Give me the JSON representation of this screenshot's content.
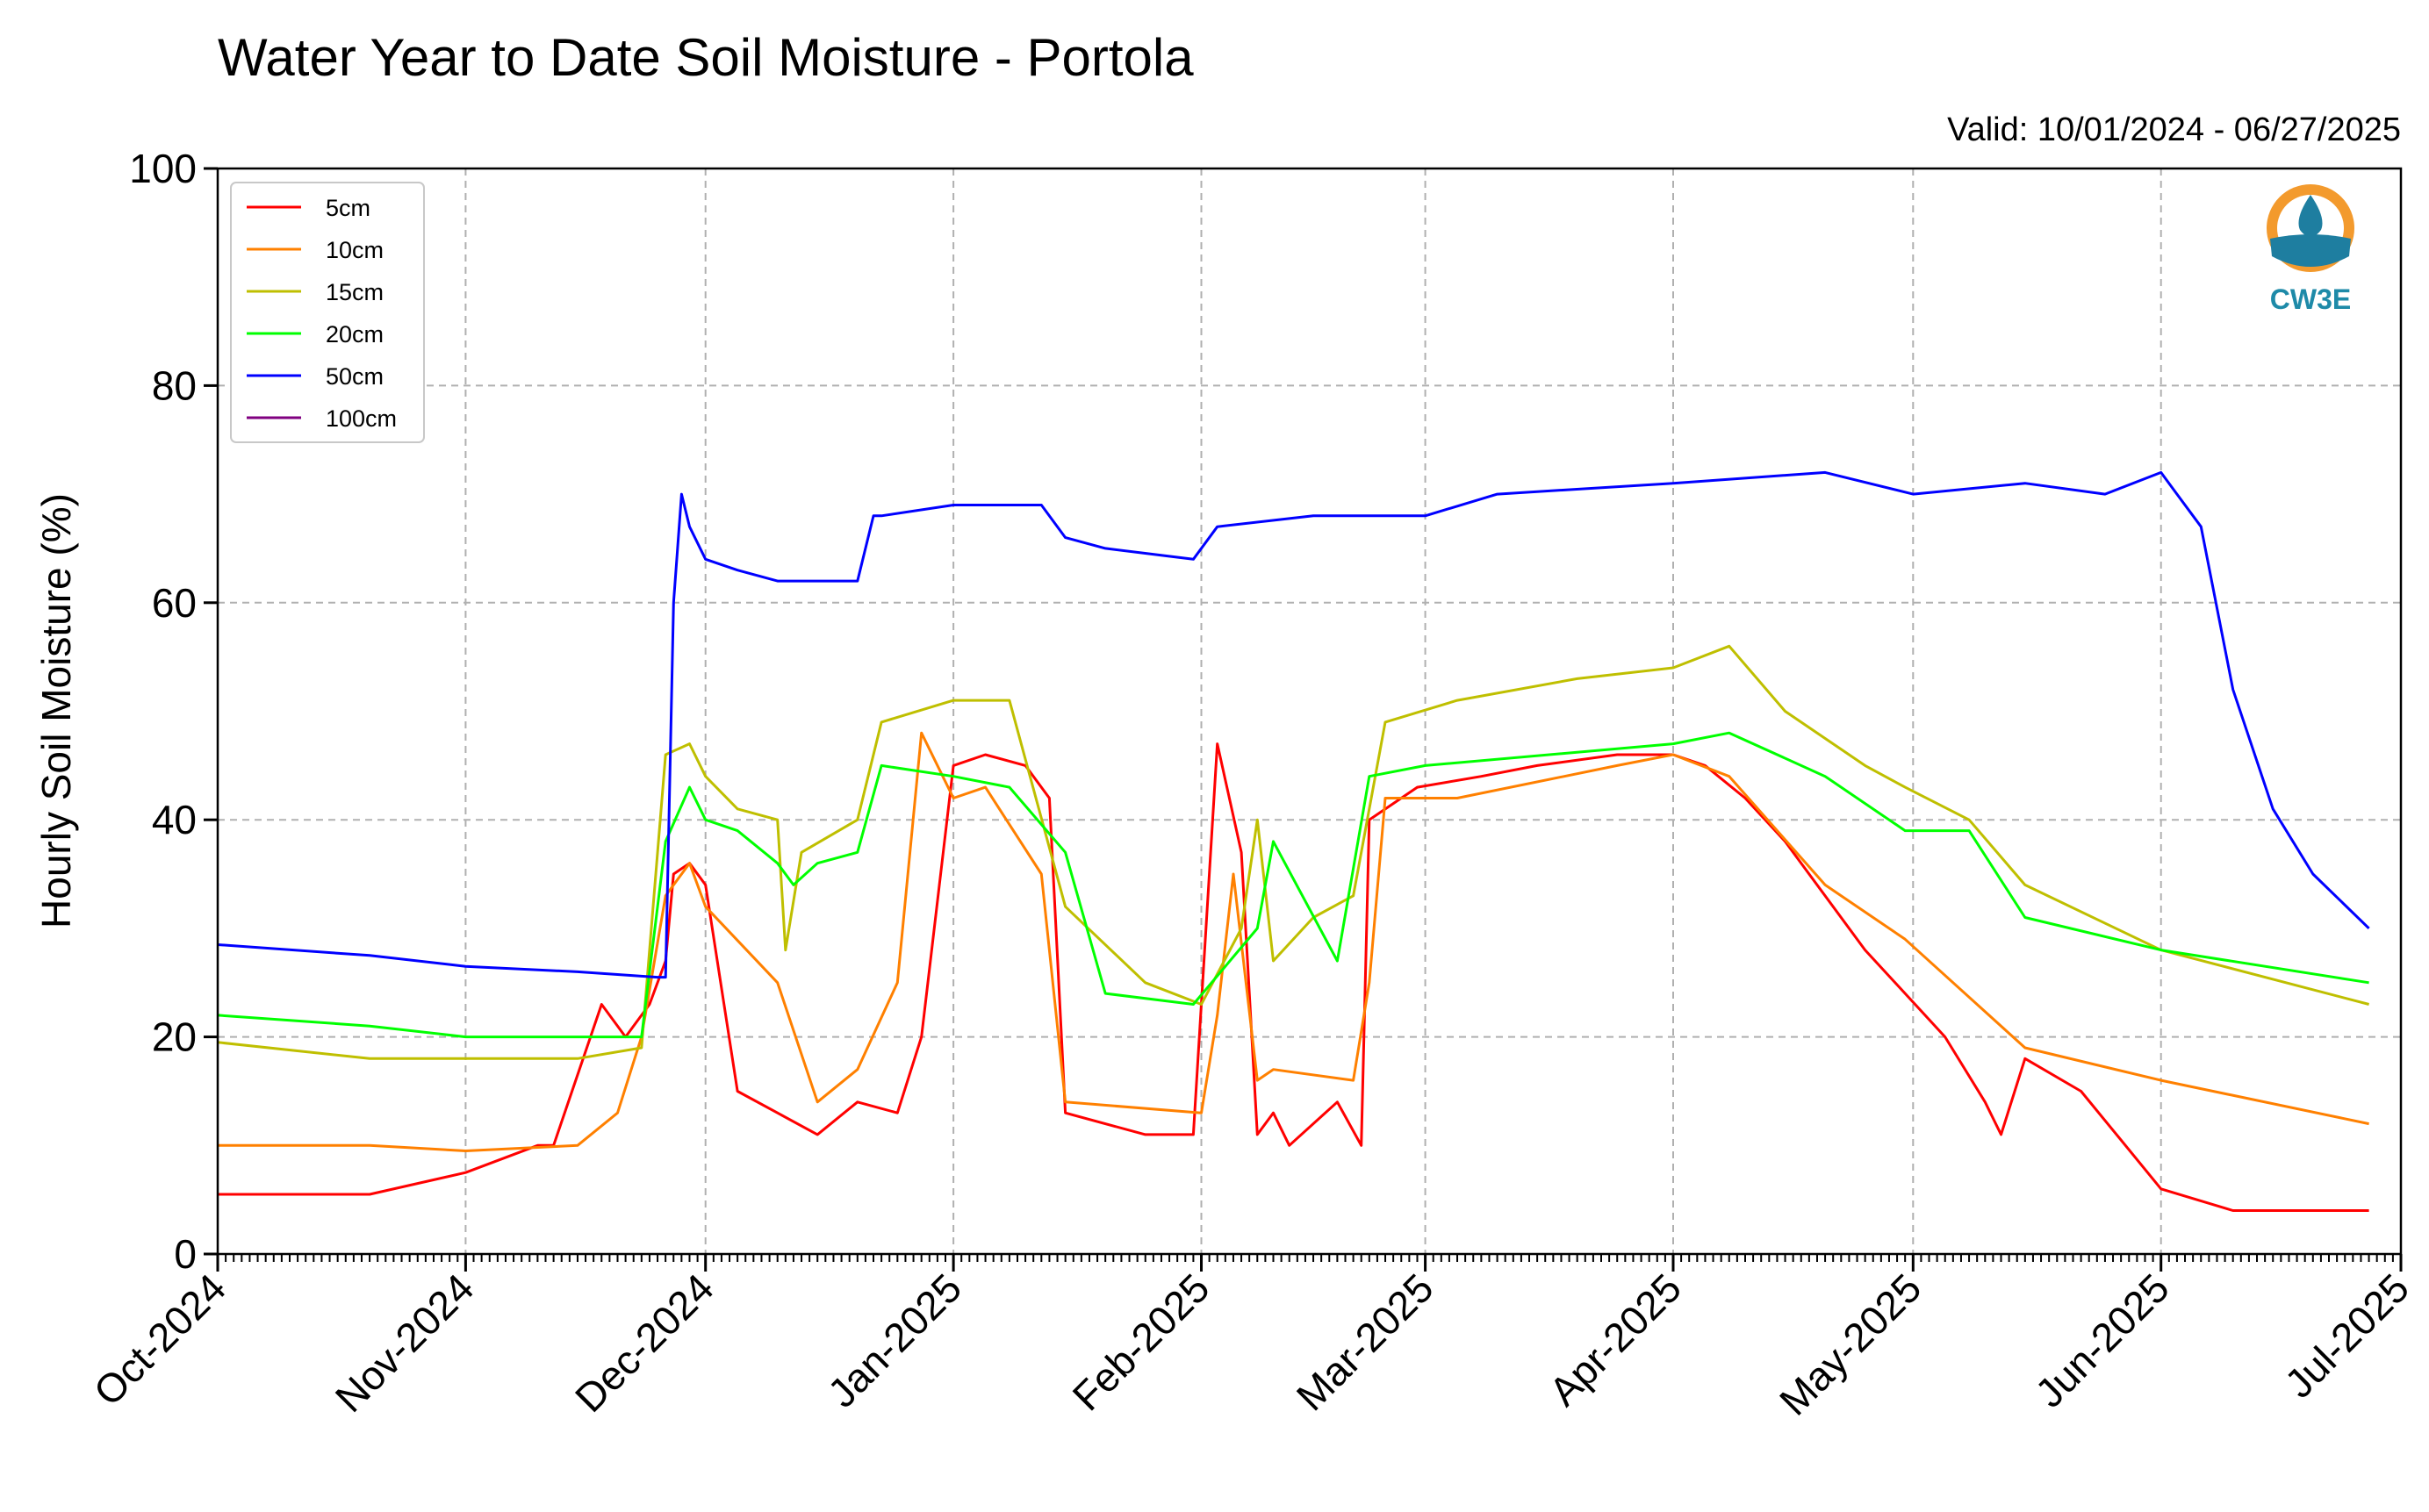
{
  "title": "Water Year to Date Soil Moisture - Portola",
  "valid_text": "Valid: 10/01/2024 - 06/27/2025",
  "logo_text": "CW3E",
  "chart_data": {
    "type": "line",
    "title": "Water Year to Date Soil Moisture - Portola",
    "xlabel": "",
    "ylabel": "Hourly Soil Moisture (%)",
    "xlim": [
      "2024-10-01",
      "2025-07-01"
    ],
    "ylim": [
      0,
      100
    ],
    "yticks": [
      0,
      20,
      40,
      60,
      80,
      100
    ],
    "x_tick_labels": [
      "Oct-2024",
      "Nov-2024",
      "Dec-2024",
      "Jan-2025",
      "Feb-2025",
      "Mar-2025",
      "Apr-2025",
      "May-2025",
      "Jun-2025",
      "Jul-2025"
    ],
    "grid": true,
    "legend_position": "top-left",
    "series": [
      {
        "name": "5cm",
        "color": "#ff0000",
        "x": [
          "2024-10-01",
          "2024-10-20",
          "2024-11-01",
          "2024-11-10",
          "2024-11-12",
          "2024-11-18",
          "2024-11-21",
          "2024-11-24",
          "2024-11-26",
          "2024-11-27",
          "2024-11-29",
          "2024-12-01",
          "2024-12-05",
          "2024-12-10",
          "2024-12-15",
          "2024-12-20",
          "2024-12-25",
          "2024-12-28",
          "2025-01-01",
          "2025-01-05",
          "2025-01-10",
          "2025-01-13",
          "2025-01-15",
          "2025-01-25",
          "2025-01-31",
          "2025-02-03",
          "2025-02-06",
          "2025-02-08",
          "2025-02-10",
          "2025-02-12",
          "2025-02-18",
          "2025-02-21",
          "2025-02-22",
          "2025-02-28",
          "2025-03-08",
          "2025-03-15",
          "2025-03-25",
          "2025-04-01",
          "2025-04-05",
          "2025-04-10",
          "2025-04-15",
          "2025-04-25",
          "2025-04-30",
          "2025-05-05",
          "2025-05-10",
          "2025-05-12",
          "2025-05-15",
          "2025-05-22",
          "2025-06-01",
          "2025-06-10",
          "2025-06-20",
          "2025-06-27"
        ],
        "values": [
          5.5,
          5.5,
          7.5,
          10,
          10,
          23,
          20,
          23,
          27,
          35,
          36,
          34,
          15,
          13,
          11,
          14,
          13,
          20,
          45,
          46,
          45,
          42,
          13,
          11,
          11,
          47,
          37,
          11,
          13,
          10,
          14,
          10,
          40,
          43,
          44,
          45,
          46,
          46,
          45,
          42,
          38,
          28,
          24,
          20,
          14,
          11,
          18,
          15,
          6,
          4,
          4,
          4
        ]
      },
      {
        "name": "10cm",
        "color": "#ff8000",
        "x": [
          "2024-10-01",
          "2024-10-20",
          "2024-11-01",
          "2024-11-15",
          "2024-11-20",
          "2024-11-23",
          "2024-11-26",
          "2024-11-29",
          "2024-12-01",
          "2024-12-10",
          "2024-12-15",
          "2024-12-20",
          "2024-12-25",
          "2024-12-28",
          "2025-01-01",
          "2025-01-05",
          "2025-01-12",
          "2025-01-15",
          "2025-02-01",
          "2025-02-03",
          "2025-02-05",
          "2025-02-08",
          "2025-02-10",
          "2025-02-20",
          "2025-02-22",
          "2025-02-24",
          "2025-03-05",
          "2025-03-25",
          "2025-04-01",
          "2025-04-08",
          "2025-04-20",
          "2025-04-30",
          "2025-05-15",
          "2025-06-01",
          "2025-06-27"
        ],
        "values": [
          10,
          10,
          9.5,
          10,
          13,
          20,
          33,
          36,
          32,
          25,
          14,
          17,
          25,
          48,
          42,
          43,
          35,
          14,
          13,
          22,
          35,
          16,
          17,
          16,
          25,
          42,
          42,
          45,
          46,
          44,
          34,
          29,
          19,
          16,
          12
        ]
      },
      {
        "name": "15cm",
        "color": "#bfbf00",
        "x": [
          "2024-10-01",
          "2024-10-20",
          "2024-11-01",
          "2024-11-15",
          "2024-11-23",
          "2024-11-26",
          "2024-11-29",
          "2024-12-01",
          "2024-12-05",
          "2024-12-10",
          "2024-12-11",
          "2024-12-13",
          "2024-12-20",
          "2024-12-23",
          "2025-01-01",
          "2025-01-08",
          "2025-01-15",
          "2025-01-25",
          "2025-02-01",
          "2025-02-06",
          "2025-02-08",
          "2025-02-10",
          "2025-02-15",
          "2025-02-20",
          "2025-02-24",
          "2025-03-05",
          "2025-03-20",
          "2025-04-01",
          "2025-04-08",
          "2025-04-15",
          "2025-04-25",
          "2025-04-30",
          "2025-05-08",
          "2025-05-15",
          "2025-06-01",
          "2025-06-27"
        ],
        "values": [
          19.5,
          18,
          18,
          18,
          19,
          46,
          47,
          44,
          41,
          40,
          28,
          37,
          40,
          49,
          51,
          51,
          32,
          25,
          23,
          30,
          40,
          27,
          31,
          33,
          49,
          51,
          53,
          54,
          56,
          50,
          45,
          43,
          40,
          34,
          28,
          23
        ]
      },
      {
        "name": "20cm",
        "color": "#00ff00",
        "x": [
          "2024-10-01",
          "2024-10-20",
          "2024-11-01",
          "2024-11-15",
          "2024-11-23",
          "2024-11-26",
          "2024-11-29",
          "2024-12-01",
          "2024-12-05",
          "2024-12-10",
          "2024-12-12",
          "2024-12-15",
          "2024-12-20",
          "2024-12-23",
          "2025-01-01",
          "2025-01-08",
          "2025-01-15",
          "2025-01-20",
          "2025-01-31",
          "2025-02-08",
          "2025-02-10",
          "2025-02-18",
          "2025-02-22",
          "2025-03-01",
          "2025-04-01",
          "2025-04-08",
          "2025-04-20",
          "2025-04-30",
          "2025-05-08",
          "2025-05-15",
          "2025-06-01",
          "2025-06-27"
        ],
        "values": [
          22,
          21,
          20,
          20,
          20,
          38,
          43,
          40,
          39,
          36,
          34,
          36,
          37,
          45,
          44,
          43,
          37,
          24,
          23,
          30,
          38,
          27,
          44,
          45,
          47,
          48,
          44,
          39,
          39,
          31,
          28,
          25
        ]
      },
      {
        "name": "50cm",
        "color": "#0000ff",
        "x": [
          "2024-10-01",
          "2024-10-20",
          "2024-11-01",
          "2024-11-15",
          "2024-11-25",
          "2024-11-26",
          "2024-11-27",
          "2024-11-28",
          "2024-11-29",
          "2024-12-01",
          "2024-12-05",
          "2024-12-10",
          "2024-12-20",
          "2024-12-22",
          "2024-12-23",
          "2025-01-01",
          "2025-01-12",
          "2025-01-15",
          "2025-01-20",
          "2025-01-31",
          "2025-02-03",
          "2025-02-15",
          "2025-03-01",
          "2025-03-10",
          "2025-04-01",
          "2025-04-20",
          "2025-05-01",
          "2025-05-15",
          "2025-05-25",
          "2025-06-01",
          "2025-06-03",
          "2025-06-06",
          "2025-06-10",
          "2025-06-15",
          "2025-06-20",
          "2025-06-27"
        ],
        "values": [
          28.5,
          27.5,
          26.5,
          26,
          25.5,
          25.5,
          60,
          70,
          67,
          64,
          63,
          62,
          62,
          68,
          68,
          69,
          69,
          66,
          65,
          64,
          67,
          68,
          68,
          70,
          71,
          72,
          70,
          71,
          70,
          72,
          70,
          67,
          52,
          41,
          35,
          30
        ]
      },
      {
        "name": "100cm",
        "color": "#800080",
        "x": [],
        "values": []
      }
    ]
  }
}
